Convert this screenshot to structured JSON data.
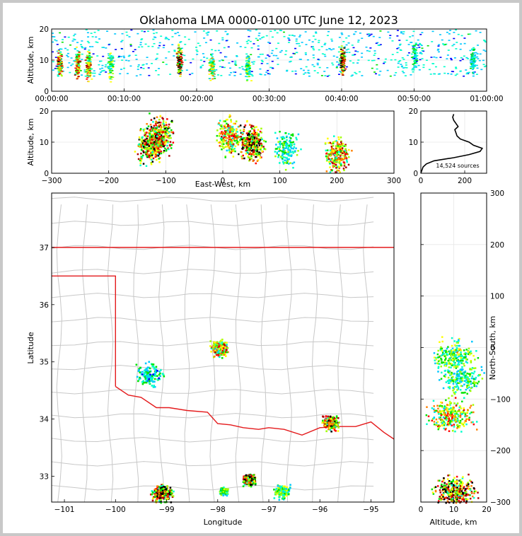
{
  "chart_data": [
    {
      "type": "heatmap",
      "panel": "altitude-vs-time",
      "title": "Oklahoma LMA 0000-0100 UTC June 12, 2023",
      "ylabel": "Altitude, km",
      "xlabel": "",
      "xlim": [
        "00:00:00",
        "01:00:00"
      ],
      "ylim": [
        0,
        20
      ],
      "xticks": [
        "00:00:00",
        "00:10:00",
        "00:20:00",
        "00:30:00",
        "00:40:00",
        "00:50:00",
        "01:00:00"
      ],
      "yticks": [
        "0",
        "10",
        "20"
      ],
      "clusters": [
        {
          "t_min": 1.0,
          "alt_km": 9,
          "intensity": 0.85
        },
        {
          "t_min": 3.5,
          "alt_km": 9,
          "intensity": 0.8
        },
        {
          "t_min": 5.0,
          "alt_km": 8,
          "intensity": 0.85
        },
        {
          "t_min": 8.0,
          "alt_km": 8,
          "intensity": 0.5
        },
        {
          "t_min": 17.5,
          "alt_km": 10,
          "intensity": 0.95
        },
        {
          "t_min": 22.0,
          "alt_km": 8,
          "intensity": 0.6
        },
        {
          "t_min": 27.0,
          "alt_km": 8,
          "intensity": 0.55
        },
        {
          "t_min": 40.0,
          "alt_km": 10,
          "intensity": 1.0
        },
        {
          "t_min": 50.0,
          "alt_km": 11,
          "intensity": 0.35
        },
        {
          "t_min": 58.0,
          "alt_km": 10,
          "intensity": 0.35
        }
      ],
      "grid": true
    },
    {
      "type": "heatmap",
      "panel": "altitude-vs-east-west",
      "xlabel": "East-West, km",
      "ylabel": "Altitude, km",
      "xlim": [
        -300,
        300
      ],
      "ylim": [
        0,
        20
      ],
      "xticks": [
        "−300",
        "−200",
        "−100",
        "0",
        "100",
        "200",
        "300"
      ],
      "yticks": [
        "0",
        "10",
        "20"
      ],
      "clusters": [
        {
          "x_km": -110,
          "alt_km": 12,
          "intensity": 0.9
        },
        {
          "x_km": -130,
          "alt_km": 9,
          "intensity": 0.9
        },
        {
          "x_km": 10,
          "alt_km": 12,
          "intensity": 0.75
        },
        {
          "x_km": 50,
          "alt_km": 10,
          "intensity": 1.0
        },
        {
          "x_km": 110,
          "alt_km": 8,
          "intensity": 0.4
        },
        {
          "x_km": 200,
          "alt_km": 6,
          "intensity": 0.8
        }
      ],
      "grid": true
    },
    {
      "type": "line",
      "panel": "altitude-histogram",
      "xlim": [
        0,
        300
      ],
      "ylim": [
        0,
        20
      ],
      "xticks": [
        "0",
        "200"
      ],
      "yticks": [
        "0",
        "10",
        "20"
      ],
      "annotation": "14,524 sources",
      "x": [
        0,
        5,
        10,
        25,
        60,
        150,
        220,
        270,
        280,
        240,
        220,
        180,
        165,
        160,
        155,
        170,
        160,
        150,
        145,
        150
      ],
      "y": [
        0,
        1,
        2,
        3,
        4,
        5,
        6,
        7,
        8,
        9,
        10,
        11,
        12,
        13,
        14,
        15,
        16,
        17,
        18,
        19
      ],
      "grid": true
    },
    {
      "type": "scatter",
      "panel": "plan-view-map",
      "xlabel": "Longitude",
      "ylabel": "Latitude",
      "xlim": [
        -101.25,
        -94.55
      ],
      "ylim": [
        32.55,
        37.95
      ],
      "xticks": [
        "−101",
        "−100",
        "−99",
        "−98",
        "−97",
        "−96",
        "−95"
      ],
      "yticks": [
        "33",
        "34",
        "35",
        "36",
        "37"
      ],
      "clusters": [
        {
          "lon": -97.98,
          "lat": 35.25,
          "spread": 0.22,
          "intensity": 0.75
        },
        {
          "lon": -99.35,
          "lat": 34.8,
          "spread": 0.35,
          "intensity": 0.35
        },
        {
          "lon": -95.8,
          "lat": 33.95,
          "spread": 0.2,
          "intensity": 0.9
        },
        {
          "lon": -99.1,
          "lat": 32.72,
          "spread": 0.25,
          "intensity": 0.95
        },
        {
          "lon": -97.4,
          "lat": 32.95,
          "spread": 0.15,
          "intensity": 1.0
        },
        {
          "lon": -96.75,
          "lat": 32.75,
          "spread": 0.2,
          "intensity": 0.55
        },
        {
          "lon": -97.9,
          "lat": 32.75,
          "spread": 0.12,
          "intensity": 0.5
        }
      ],
      "grid": true
    },
    {
      "type": "heatmap",
      "panel": "north-south-vs-altitude",
      "xlabel": "Altitude, km",
      "ylabel": "North-South, km",
      "xlim": [
        0,
        20
      ],
      "ylim": [
        -300,
        300
      ],
      "xticks": [
        "0",
        "10",
        "20"
      ],
      "yticks": [
        "−300",
        "−200",
        "−100",
        "0",
        "100",
        "200",
        "300"
      ],
      "clusters": [
        {
          "alt_km": 10,
          "ns_km": -15,
          "intensity": 0.55
        },
        {
          "alt_km": 12,
          "ns_km": -60,
          "intensity": 0.45
        },
        {
          "alt_km": 9,
          "ns_km": -130,
          "intensity": 0.7
        },
        {
          "alt_km": 10,
          "ns_km": -280,
          "intensity": 1.0
        }
      ],
      "grid": true
    }
  ],
  "colors": {
    "state_border": "#e41a1c",
    "county_lines": "#c8c8c8",
    "colormap": [
      "#0000ff",
      "#00c8ff",
      "#00ffcc",
      "#00e400",
      "#a0ff00",
      "#ffff00",
      "#ff8000",
      "#ff0000",
      "#b00000",
      "#000000"
    ]
  }
}
